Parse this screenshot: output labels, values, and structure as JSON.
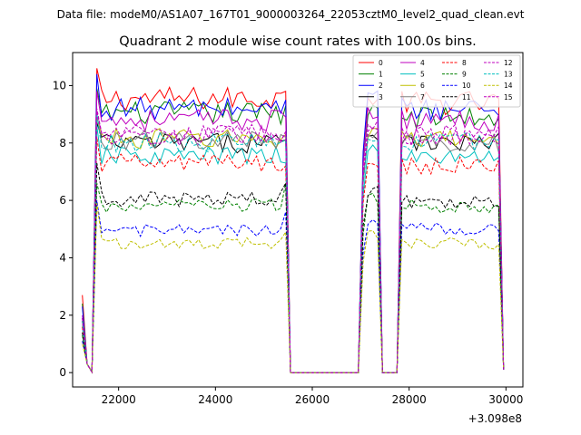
{
  "figure": {
    "suptitle": "Data file: modeM0/AS1A07_167T01_9000003264_22053cztM0_level2_quad_clean.evt"
  },
  "chart_data": {
    "type": "line",
    "title": "Quadrant 2 module wise count rates with 100.0s bins.",
    "xlabel": "",
    "ylabel": "",
    "x_offset_label": "+3.098e8",
    "xlim": [
      21050,
      30350
    ],
    "ylim": [
      -0.5,
      11.15
    ],
    "xticks": [
      22000,
      24000,
      26000,
      28000,
      30000
    ],
    "xtick_labels": [
      "22000",
      "24000",
      "26000",
      "28000",
      "30000"
    ],
    "yticks": [
      0,
      2,
      4,
      6,
      8,
      10
    ],
    "ytick_labels": [
      "0",
      "2",
      "4",
      "6",
      "8",
      "10"
    ],
    "grid": false,
    "legend_position": "upper right",
    "segments": [
      [
        21250,
        21650
      ],
      [
        21650,
        25450
      ],
      [
        25450,
        27000
      ],
      [
        27000,
        27450
      ],
      [
        27450,
        27750
      ],
      [
        27750,
        28050
      ],
      [
        28050,
        29850
      ],
      [
        29850,
        29950
      ]
    ],
    "series": [
      {
        "name": "0",
        "color": "#ff0000",
        "dash": "solid",
        "level": 9.55,
        "start": 2.7,
        "peak": 10.6,
        "end": 9.8,
        "b1": 9.5,
        "b2": 9.4
      },
      {
        "name": "1",
        "color": "#008000",
        "dash": "solid",
        "level": 9.05,
        "start": 2.4,
        "peak": 9.9,
        "end": 9.3,
        "b1": 9.1,
        "b2": 8.9
      },
      {
        "name": "2",
        "color": "#0000ff",
        "dash": "solid",
        "level": 9.2,
        "start": 2.3,
        "peak": 10.4,
        "end": 9.5,
        "b1": 9.6,
        "b2": 9.2
      },
      {
        "name": "3",
        "color": "#000000",
        "dash": "solid",
        "level": 8.0,
        "start": 1.8,
        "peak": 8.7,
        "end": 8.1,
        "b1": 8.3,
        "b2": 8.0
      },
      {
        "name": "4",
        "color": "#bf00bf",
        "dash": "solid",
        "level": 8.8,
        "start": 2.0,
        "peak": 9.8,
        "end": 8.9,
        "b1": 9.0,
        "b2": 8.8
      },
      {
        "name": "5",
        "color": "#00bfbf",
        "dash": "solid",
        "level": 7.55,
        "start": 1.6,
        "peak": 8.6,
        "end": 7.3,
        "b1": 7.7,
        "b2": 7.5
      },
      {
        "name": "6",
        "color": "#bfbf00",
        "dash": "solid",
        "level": 8.15,
        "start": 1.9,
        "peak": 8.9,
        "end": 8.3,
        "b1": 8.4,
        "b2": 8.1
      },
      {
        "name": "7",
        "color": "#808080",
        "dash": "solid",
        "level": 8.1,
        "start": 1.8,
        "peak": 9.0,
        "end": 8.2,
        "b1": 8.2,
        "b2": 8.0
      },
      {
        "name": "8",
        "color": "#ff0000",
        "dash": "dashed",
        "level": 7.3,
        "start": 1.6,
        "peak": 8.2,
        "end": 7.2,
        "b1": 7.4,
        "b2": 7.2
      },
      {
        "name": "9",
        "color": "#008000",
        "dash": "dashed",
        "level": 5.8,
        "start": 1.3,
        "peak": 6.6,
        "end": 6.6,
        "b1": 6.0,
        "b2": 5.8
      },
      {
        "name": "10",
        "color": "#0000ff",
        "dash": "dashed",
        "level": 4.95,
        "start": 1.1,
        "peak": 6.0,
        "end": 5.6,
        "b1": 5.2,
        "b2": 5.0
      },
      {
        "name": "11",
        "color": "#000000",
        "dash": "dashed",
        "level": 6.05,
        "start": 1.4,
        "peak": 7.3,
        "end": 6.6,
        "b1": 6.4,
        "b2": 6.0
      },
      {
        "name": "12",
        "color": "#bf00bf",
        "dash": "dashed",
        "level": 8.25,
        "start": 1.9,
        "peak": 9.2,
        "end": 8.4,
        "b1": 8.6,
        "b2": 8.3
      },
      {
        "name": "13",
        "color": "#00bfbf",
        "dash": "dashed",
        "level": 8.0,
        "start": 1.8,
        "peak": 9.0,
        "end": 8.1,
        "b1": 8.3,
        "b2": 8.0
      },
      {
        "name": "14",
        "color": "#bfbf00",
        "dash": "dashed",
        "level": 4.5,
        "start": 1.0,
        "peak": 5.9,
        "end": 4.9,
        "b1": 4.8,
        "b2": 4.5
      },
      {
        "name": "15",
        "color": "#bf00bf",
        "dash": "dashed",
        "level": 8.3,
        "start": 1.9,
        "peak": 9.1,
        "end": 8.4,
        "b1": 8.5,
        "b2": 8.2
      }
    ]
  }
}
